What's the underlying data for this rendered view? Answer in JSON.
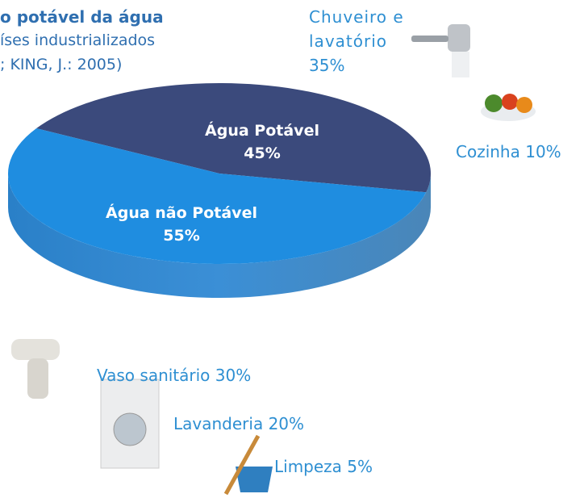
{
  "chart_data": {
    "type": "pie",
    "title_lines": [
      "o potável da água",
      "íses industrializados",
      "; KING, J.: 2005)"
    ],
    "categories": [
      "Água Potável",
      "Água não Potável"
    ],
    "values": [
      45,
      55
    ],
    "value_labels": [
      "45%",
      "55%"
    ],
    "colors": [
      "#3b4a7c",
      "#1f8de0"
    ],
    "uses": {
      "categories": [
        "Chuveiro e lavatório",
        "Cozinha",
        "Vaso sanitário",
        "Lavanderia",
        "Limpeza"
      ],
      "values": [
        35,
        10,
        30,
        20,
        5
      ],
      "value_labels": [
        "35%",
        "10%",
        "30%",
        "20%",
        "5%"
      ],
      "color": "#2e8fd2"
    }
  }
}
